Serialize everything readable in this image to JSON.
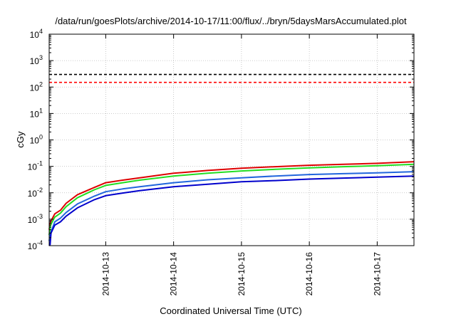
{
  "chart_data": {
    "type": "line",
    "title": "/data/run/goesPlots/archive/2014-10-17/11:00/flux/../bryn/5daysMarsAccumulated.plot",
    "xlabel": "Coordinated Universal Time (UTC)",
    "ylabel": "cGy",
    "y_scale": "log",
    "ylim": [
      0.0001,
      10000
    ],
    "xlim": [
      "2014-10-12T04:00",
      "2014-10-17T13:00"
    ],
    "grid": true,
    "legend": "none",
    "x_ticks": [
      "2014-10-13",
      "2014-10-14",
      "2014-10-15",
      "2014-10-16",
      "2014-10-17"
    ],
    "y_ticks": [
      {
        "value": 0.0001,
        "base": "10",
        "exp": "-4"
      },
      {
        "value": 0.001,
        "base": "10",
        "exp": "-3"
      },
      {
        "value": 0.01,
        "base": "10",
        "exp": "-2"
      },
      {
        "value": 0.1,
        "base": "10",
        "exp": "-1"
      },
      {
        "value": 1,
        "base": "10",
        "exp": "0"
      },
      {
        "value": 10,
        "base": "10",
        "exp": "1"
      },
      {
        "value": 100,
        "base": "10",
        "exp": "2"
      },
      {
        "value": 1000,
        "base": "10",
        "exp": "3"
      },
      {
        "value": 10000,
        "base": "10",
        "exp": "4"
      }
    ],
    "reference_lines": [
      {
        "value": 300,
        "color": "#000000",
        "style": "dashed"
      },
      {
        "value": 150,
        "color": "#ff0000",
        "style": "dashed"
      }
    ],
    "series": [
      {
        "color": "#dd0000",
        "x": [
          "2014-10-12T04:00",
          "2014-10-12T04:30",
          "2014-10-12T06:00",
          "2014-10-12T08:00",
          "2014-10-12T10:00",
          "2014-10-12T14:00",
          "2014-10-12T20:00",
          "2014-10-13T00:00",
          "2014-10-13T06:00",
          "2014-10-13T12:00",
          "2014-10-14T00:00",
          "2014-10-14T12:00",
          "2014-10-15T00:00",
          "2014-10-15T12:00",
          "2014-10-16T00:00",
          "2014-10-16T12:00",
          "2014-10-17T00:00",
          "2014-10-17T13:00"
        ],
        "y": [
          0.0004,
          0.0008,
          0.0016,
          0.0022,
          0.004,
          0.0085,
          0.016,
          0.024,
          0.03,
          0.037,
          0.055,
          0.07,
          0.085,
          0.097,
          0.11,
          0.12,
          0.13,
          0.15
        ]
      },
      {
        "color": "#22dd22",
        "x": [
          "2014-10-12T04:00",
          "2014-10-12T04:30",
          "2014-10-12T06:00",
          "2014-10-12T08:00",
          "2014-10-12T10:00",
          "2014-10-12T14:00",
          "2014-10-12T20:00",
          "2014-10-13T00:00",
          "2014-10-13T06:00",
          "2014-10-13T12:00",
          "2014-10-14T00:00",
          "2014-10-14T12:00",
          "2014-10-15T00:00",
          "2014-10-15T12:00",
          "2014-10-16T00:00",
          "2014-10-16T12:00",
          "2014-10-17T00:00",
          "2014-10-17T13:00"
        ],
        "y": [
          0.00025,
          0.0006,
          0.0012,
          0.0017,
          0.003,
          0.0065,
          0.013,
          0.019,
          0.024,
          0.03,
          0.043,
          0.055,
          0.067,
          0.077,
          0.088,
          0.097,
          0.105,
          0.12
        ]
      },
      {
        "color": "#2266dd",
        "x": [
          "2014-10-12T04:00",
          "2014-10-12T04:30",
          "2014-10-12T06:00",
          "2014-10-12T08:00",
          "2014-10-12T10:00",
          "2014-10-12T14:00",
          "2014-10-12T20:00",
          "2014-10-13T00:00",
          "2014-10-13T06:00",
          "2014-10-13T12:00",
          "2014-10-14T00:00",
          "2014-10-14T12:00",
          "2014-10-15T00:00",
          "2014-10-15T12:00",
          "2014-10-16T00:00",
          "2014-10-16T12:00",
          "2014-10-17T00:00",
          "2014-10-17T13:00"
        ],
        "y": [
          0.00015,
          0.0003,
          0.0008,
          0.0011,
          0.0018,
          0.0038,
          0.0075,
          0.011,
          0.014,
          0.017,
          0.024,
          0.031,
          0.037,
          0.043,
          0.049,
          0.053,
          0.057,
          0.063
        ]
      },
      {
        "color": "#0000cc",
        "x": [
          "2014-10-12T04:00",
          "2014-10-12T04:20",
          "2014-10-12T04:40",
          "2014-10-12T06:00",
          "2014-10-12T08:00",
          "2014-10-12T10:00",
          "2014-10-12T14:00",
          "2014-10-12T20:00",
          "2014-10-13T00:00",
          "2014-10-13T06:00",
          "2014-10-13T12:00",
          "2014-10-14T00:00",
          "2014-10-14T12:00",
          "2014-10-15T00:00",
          "2014-10-15T12:00",
          "2014-10-16T00:00",
          "2014-10-16T12:00",
          "2014-10-17T00:00",
          "2014-10-17T13:00"
        ],
        "y": [
          0.0001,
          0.00011,
          0.0003,
          0.0006,
          0.0008,
          0.0013,
          0.0027,
          0.0055,
          0.0078,
          0.0098,
          0.012,
          0.017,
          0.021,
          0.026,
          0.029,
          0.033,
          0.036,
          0.039,
          0.043
        ]
      }
    ]
  }
}
